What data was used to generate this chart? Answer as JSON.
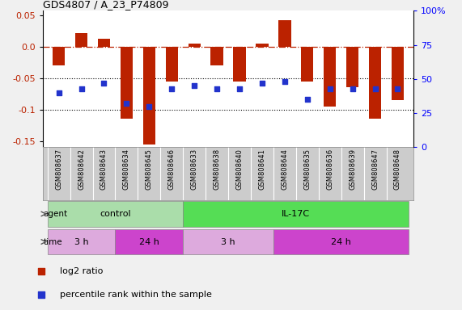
{
  "title": "GDS4807 / A_23_P74809",
  "samples": [
    "GSM808637",
    "GSM808642",
    "GSM808643",
    "GSM808634",
    "GSM808645",
    "GSM808646",
    "GSM808633",
    "GSM808638",
    "GSM808640",
    "GSM808641",
    "GSM808644",
    "GSM808635",
    "GSM808636",
    "GSM808639",
    "GSM808647",
    "GSM808648"
  ],
  "log2_ratio": [
    -0.03,
    0.022,
    0.012,
    -0.115,
    -0.155,
    -0.055,
    0.005,
    -0.03,
    -0.055,
    0.005,
    0.042,
    -0.055,
    -0.095,
    -0.065,
    -0.115,
    -0.085
  ],
  "percentile": [
    40,
    43,
    47,
    32,
    30,
    43,
    45,
    43,
    43,
    47,
    48,
    35,
    43,
    43,
    43,
    43
  ],
  "ylim_left": [
    -0.16,
    0.057
  ],
  "ylim_right": [
    0,
    100
  ],
  "yticks_left": [
    -0.15,
    -0.1,
    -0.05,
    0.0,
    0.05
  ],
  "yticks_right": [
    0,
    25,
    50,
    75,
    100
  ],
  "bar_color": "#bb2200",
  "dot_color": "#2233cc",
  "agent_groups": [
    {
      "label": "control",
      "start": 0,
      "end": 6,
      "color": "#aaddaa"
    },
    {
      "label": "IL-17C",
      "start": 6,
      "end": 16,
      "color": "#55dd55"
    }
  ],
  "time_groups": [
    {
      "label": "3 h",
      "start": 0,
      "end": 3,
      "color": "#ddaadd"
    },
    {
      "label": "24 h",
      "start": 3,
      "end": 6,
      "color": "#cc44cc"
    },
    {
      "label": "3 h",
      "start": 6,
      "end": 10,
      "color": "#ddaadd"
    },
    {
      "label": "24 h",
      "start": 10,
      "end": 16,
      "color": "#cc44cc"
    }
  ],
  "legend_bar_label": "log2 ratio",
  "legend_dot_label": "percentile rank within the sample",
  "sample_bg": "#cccccc",
  "fig_bg": "#f0f0f0"
}
